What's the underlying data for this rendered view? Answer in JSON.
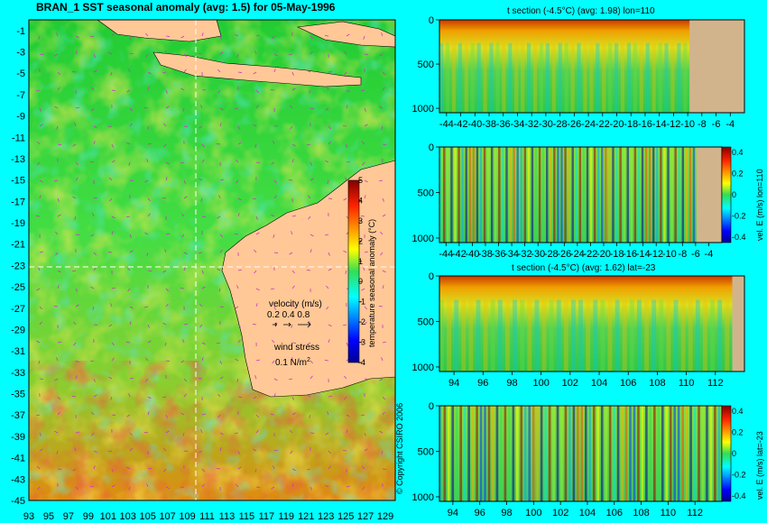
{
  "chart_data": [
    {
      "type": "heatmap",
      "title": "BRAN_1 SST seasonal anomaly (avg: 1.5) for 05-May-1996",
      "x_ticks": [
        "93",
        "95",
        "97",
        "99",
        "101",
        "103",
        "105",
        "107",
        "109",
        "111",
        "113",
        "115",
        "117",
        "119",
        "121",
        "123",
        "125",
        "127",
        "129"
      ],
      "y_ticks": [
        "-1",
        "-3",
        "-5",
        "-7",
        "-9",
        "-11",
        "-13",
        "-15",
        "-17",
        "-19",
        "-21",
        "-23",
        "-25",
        "-27",
        "-29",
        "-31",
        "-33",
        "-35",
        "-37",
        "-39",
        "-41",
        "-43",
        "-45"
      ],
      "xlim": [
        93,
        130
      ],
      "ylim": [
        -45,
        0
      ],
      "section_lines": {
        "lon": 110,
        "lat": -23
      },
      "colorbar": {
        "label": "temperature seasonal anomaly (°C)",
        "ticks": [
          "5",
          "4",
          "3",
          "2",
          "1",
          "0",
          "-1",
          "-2",
          "-3",
          "-4"
        ],
        "range": [
          -4,
          5
        ]
      },
      "legend": {
        "velocity_label": "velocity (m/s)",
        "velocity_values": "0.2 0.4 0.8",
        "wind_label": "wind stress",
        "wind_value": "0.1 N/m",
        "wind_sup": "2"
      },
      "copyright": "© Copyright CSIRO 2006"
    },
    {
      "type": "heatmap",
      "title": "t section (-4.5°C) (avg: 1.98) lon=110",
      "x_ticks": [
        "-44",
        "-42",
        "-40",
        "-38",
        "-36",
        "-34",
        "-32",
        "-30",
        "-28",
        "-26",
        "-24",
        "-22",
        "-20",
        "-18",
        "-16",
        "-14",
        "-12",
        "-10",
        "-8",
        "-6",
        "-4"
      ],
      "y_ticks": [
        "0",
        "500",
        "1000"
      ],
      "xlim": [
        -45,
        -2
      ],
      "ylim": [
        1050,
        0
      ]
    },
    {
      "type": "heatmap",
      "title": "",
      "x_ticks": [
        "-44",
        "-42",
        "-40",
        "-38",
        "-36",
        "-34",
        "-32",
        "-30",
        "-28",
        "-26",
        "-24",
        "-22",
        "-20",
        "-18",
        "-16",
        "-14",
        "-12",
        "-10",
        "-8",
        "-6",
        "-4"
      ],
      "y_ticks": [
        "0",
        "500",
        "1000"
      ],
      "xlim": [
        -45,
        -2
      ],
      "ylim": [
        1050,
        0
      ],
      "colorbar": {
        "label": "vel. E (m/s) lon=110",
        "ticks": [
          "0.4",
          "0.2",
          "0",
          "-0.2",
          "-0.4"
        ],
        "range": [
          -0.45,
          0.45
        ]
      }
    },
    {
      "type": "heatmap",
      "title": "t section (-4.5°C) (avg: 1.62) lat=-23",
      "x_ticks": [
        "94",
        "96",
        "98",
        "100",
        "102",
        "104",
        "106",
        "108",
        "110",
        "112"
      ],
      "y_ticks": [
        "0",
        "500",
        "1000"
      ],
      "xlim": [
        93,
        114
      ],
      "ylim": [
        1050,
        0
      ]
    },
    {
      "type": "heatmap",
      "title": "",
      "x_ticks": [
        "94",
        "96",
        "98",
        "100",
        "102",
        "104",
        "106",
        "108",
        "110",
        "112"
      ],
      "y_ticks": [
        "0",
        "500",
        "1000"
      ],
      "xlim": [
        93,
        114
      ],
      "ylim": [
        1050,
        0
      ],
      "colorbar": {
        "label": "vel. E (m/s) lat=-23",
        "ticks": [
          "0.4",
          "0.2",
          "0",
          "-0.2",
          "-0.4"
        ],
        "range": [
          -0.45,
          0.45
        ]
      }
    }
  ]
}
